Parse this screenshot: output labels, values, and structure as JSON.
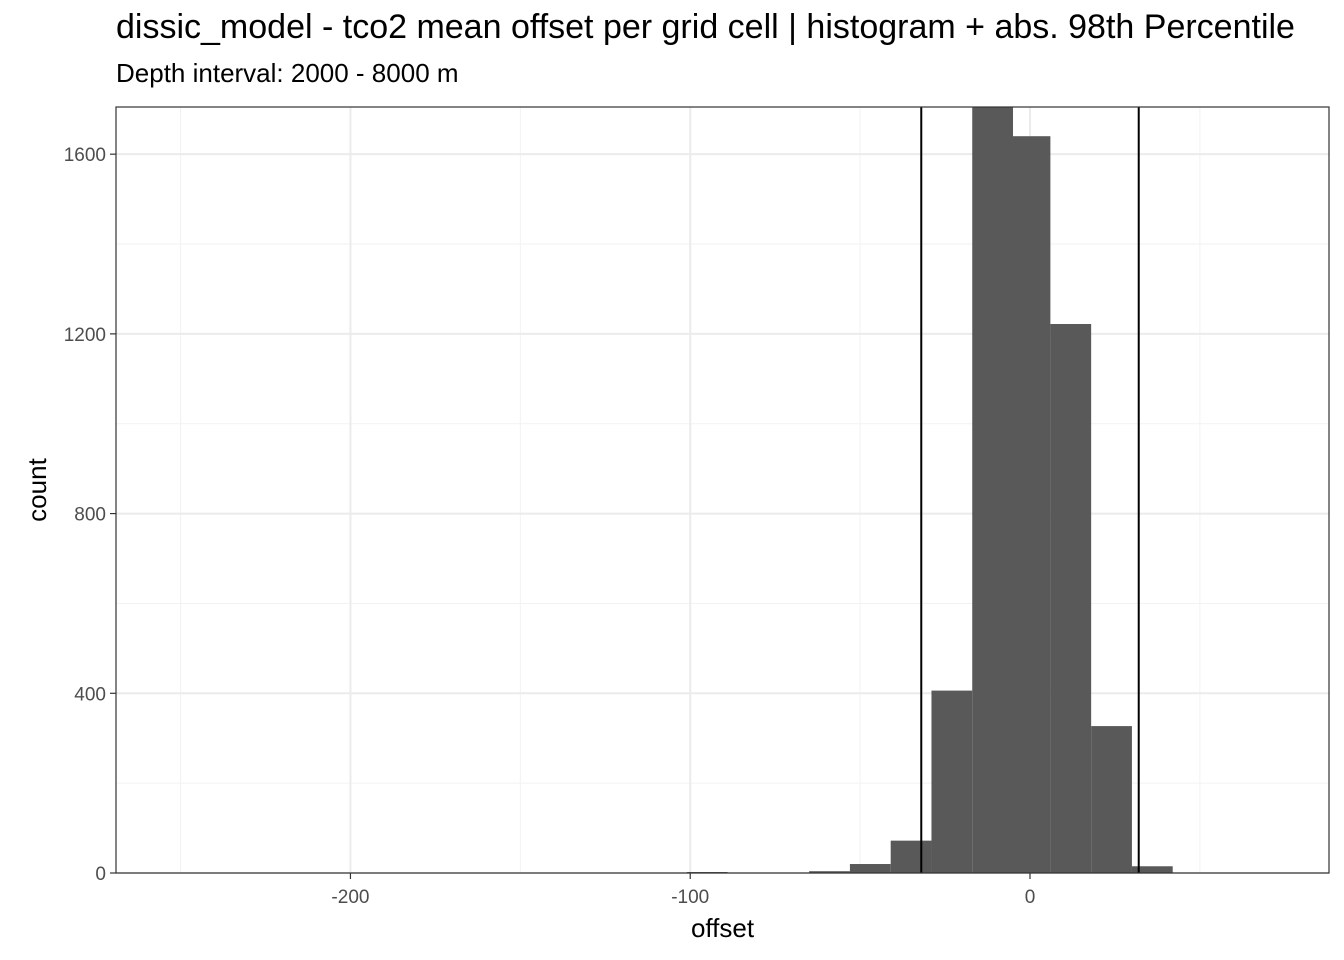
{
  "chart_data": {
    "type": "histogram",
    "title": "dissic_model  -  tco2 mean offset per grid cell | histogram + abs. 98th Percentile",
    "subtitle": "Depth interval: 2000 - 8000 m",
    "xlabel": "offset",
    "ylabel": "count",
    "xlim": [
      -269,
      88
    ],
    "ylim": [
      0,
      1705
    ],
    "x_ticks": [
      -200,
      -100,
      0
    ],
    "x_tick_labels": [
      "-200",
      "-100",
      "0"
    ],
    "y_ticks": [
      0,
      400,
      800,
      1200,
      1600
    ],
    "y_tick_labels": [
      "0",
      "400",
      "800",
      "1200",
      "1600"
    ],
    "bins": [
      {
        "x0": -101,
        "x1": -89,
        "count": 1
      },
      {
        "x0": -65,
        "x1": -53,
        "count": 4
      },
      {
        "x0": -53,
        "x1": -41,
        "count": 20
      },
      {
        "x0": -41,
        "x1": -29,
        "count": 72
      },
      {
        "x0": -29,
        "x1": -17,
        "count": 406
      },
      {
        "x0": -17,
        "x1": -5,
        "count": 1705
      },
      {
        "x0": -5,
        "x1": 6,
        "count": 1640
      },
      {
        "x0": 6,
        "x1": 18,
        "count": 1222
      },
      {
        "x0": 18,
        "x1": 30,
        "count": 327
      },
      {
        "x0": 30,
        "x1": 42,
        "count": 15
      }
    ],
    "percentile_lines": [
      -32,
      32
    ],
    "bar_color": "#595959",
    "grid": true
  }
}
